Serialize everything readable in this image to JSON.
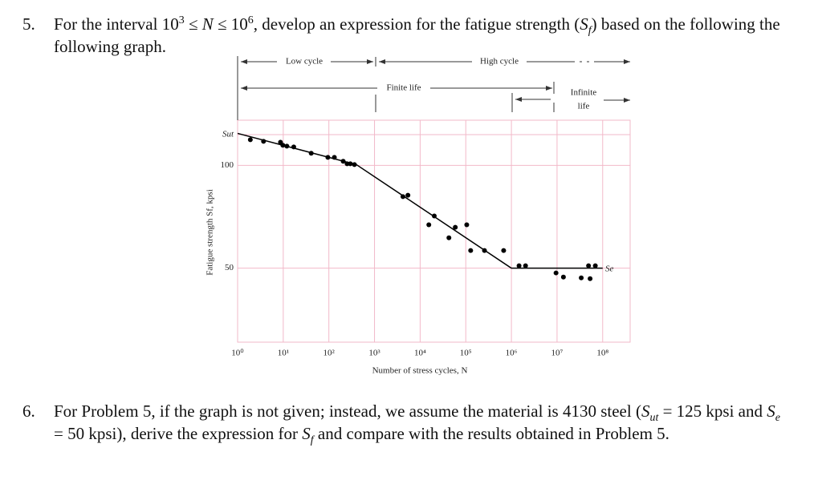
{
  "problems": [
    {
      "number": "5.",
      "text": [
        "For the interval 10",
        "3",
        " ≤ ",
        "N",
        " ≤ 10",
        "6",
        ", develop an expression for the fatigue strength (",
        "S",
        "f",
        ") based on the following the following graph."
      ]
    },
    {
      "number": "6.",
      "text": [
        "For Problem 5, if the graph is not given; instead, we assume the material is 4130 steel (",
        "S",
        "ut",
        " = 125 kpsi and ",
        "S",
        "e",
        " = 50 kpsi), derive the expression for ",
        "S",
        "f",
        " and compare with the results obtained in Problem 5."
      ]
    }
  ],
  "chart_data": {
    "type": "scatter",
    "x_label": "Number of stress cycles, N",
    "y_label": "Fatigue strength Sf, kpsi",
    "annotations": {
      "low_cycle": "Low cycle",
      "high_cycle": "High cycle",
      "finite_life": "Finite life",
      "infinite_life": [
        "Infinite",
        "life"
      ],
      "endurance": "Se"
    },
    "xscale": "log",
    "xlim": [
      1,
      400000000
    ],
    "ylim": [
      14,
      122
    ],
    "xticks": [
      {
        "value": 1,
        "label": "10⁰"
      },
      {
        "value": 10,
        "label": "10¹"
      },
      {
        "value": 100,
        "label": "10²"
      },
      {
        "value": 1000,
        "label": "10³"
      },
      {
        "value": 10000,
        "label": "10⁴"
      },
      {
        "value": 100000,
        "label": "10⁵"
      },
      {
        "value": 1000000,
        "label": "10⁶"
      },
      {
        "value": 10000000,
        "label": "10⁷"
      },
      {
        "value": 100000000,
        "label": "10⁸"
      }
    ],
    "yticks": [
      {
        "value": 115,
        "label": "Sut"
      },
      100,
      50
    ],
    "grid": true,
    "grid_color": "#f2b9c9",
    "points": {
      "color": "#000000",
      "x": [
        1.9,
        3.7,
        8.7,
        9.8,
        12,
        17,
        41,
        95,
        132,
        206,
        251,
        295,
        363,
        4200,
        5400,
        15500,
        20400,
        42700,
        58900,
        105000,
        128000,
        257000,
        676000,
        1470000,
        2040000,
        9500000,
        13800000,
        33900000,
        53000000,
        49000000,
        69000000
      ],
      "y": [
        112.5,
        111.7,
        111.3,
        109.8,
        109.4,
        109,
        105.9,
        103.9,
        103.9,
        102,
        100.8,
        100.8,
        100.4,
        84.8,
        85.5,
        71.1,
        75.4,
        64.8,
        69.9,
        71.1,
        58.6,
        58.6,
        58.6,
        51.2,
        51.2,
        47.7,
        45.7,
        45.3,
        44.9,
        51.2,
        51.2
      ]
    },
    "fit_line": {
      "color": "#000000",
      "x": [
        1,
        400,
        1000000,
        100000000
      ],
      "y": [
        115.6,
        100.4,
        50,
        50
      ]
    }
  }
}
